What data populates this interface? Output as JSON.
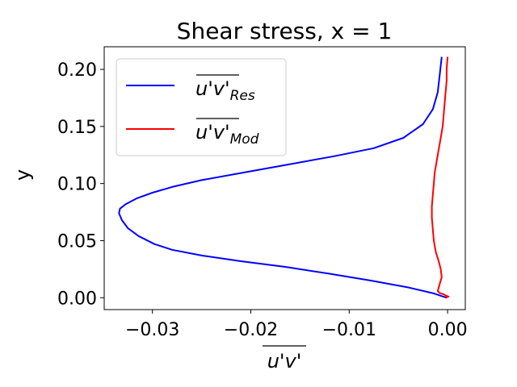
{
  "chart_data": {
    "type": "line",
    "title": "Shear stress, x = 1",
    "xlabel": "u'v'",
    "ylabel": "y",
    "xlim": [
      -0.0349,
      0.0018
    ],
    "ylim": [
      -0.0104,
      0.2198
    ],
    "xticks": [
      -0.03,
      -0.02,
      -0.01,
      0.0
    ],
    "xtick_labels": [
      "−0.03",
      "−0.02",
      "−0.01",
      "0.00"
    ],
    "yticks": [
      0.0,
      0.05,
      0.1,
      0.15,
      0.2
    ],
    "ytick_labels": [
      "0.00",
      "0.05",
      "0.10",
      "0.15",
      "0.20"
    ],
    "grid": false,
    "legend_position": "upper-left",
    "series": [
      {
        "name": "u'v'",
        "subscript": "Res",
        "color": "#0000ff",
        "points": [
          [
            -0.0006,
            0.211
          ],
          [
            -0.0008,
            0.195
          ],
          [
            -0.001,
            0.18
          ],
          [
            -0.0015,
            0.165
          ],
          [
            -0.0025,
            0.152
          ],
          [
            -0.0045,
            0.14
          ],
          [
            -0.0075,
            0.131
          ],
          [
            -0.0115,
            0.124
          ],
          [
            -0.016,
            0.117
          ],
          [
            -0.0205,
            0.11
          ],
          [
            -0.025,
            0.103
          ],
          [
            -0.028,
            0.097
          ],
          [
            -0.03,
            0.092
          ],
          [
            -0.0316,
            0.087
          ],
          [
            -0.0327,
            0.082
          ],
          [
            -0.0333,
            0.078
          ],
          [
            -0.0334,
            0.074
          ],
          [
            -0.0331,
            0.068
          ],
          [
            -0.0325,
            0.061
          ],
          [
            -0.0314,
            0.054
          ],
          [
            -0.0298,
            0.047
          ],
          [
            -0.028,
            0.042
          ],
          [
            -0.025,
            0.037
          ],
          [
            -0.021,
            0.032
          ],
          [
            -0.0165,
            0.027
          ],
          [
            -0.012,
            0.021
          ],
          [
            -0.0078,
            0.015
          ],
          [
            -0.004,
            0.009
          ],
          [
            -0.0015,
            0.004
          ],
          [
            -0.0001,
            0.0
          ]
        ]
      },
      {
        "name": "u'v'",
        "subscript": "Mod",
        "color": "#ff0000",
        "points": [
          [
            0.0,
            0.211
          ],
          [
            -0.0001,
            0.2
          ],
          [
            -0.0001,
            0.19
          ],
          [
            -0.0002,
            0.18
          ],
          [
            -0.0003,
            0.17
          ],
          [
            -0.0004,
            0.16
          ],
          [
            -0.0005,
            0.15
          ],
          [
            -0.0007,
            0.14
          ],
          [
            -0.0009,
            0.13
          ],
          [
            -0.0011,
            0.12
          ],
          [
            -0.0013,
            0.11
          ],
          [
            -0.0014,
            0.1
          ],
          [
            -0.0015,
            0.09
          ],
          [
            -0.0016,
            0.08
          ],
          [
            -0.0016,
            0.07
          ],
          [
            -0.0015,
            0.06
          ],
          [
            -0.0014,
            0.05
          ],
          [
            -0.0012,
            0.04
          ],
          [
            -0.0009,
            0.032
          ],
          [
            -0.0007,
            0.025
          ],
          [
            -0.0006,
            0.018
          ],
          [
            -0.0008,
            0.012
          ],
          [
            -0.001,
            0.006
          ],
          [
            -0.0008,
            0.004
          ],
          [
            -0.0004,
            0.003
          ],
          [
            -0.0002,
            0.002
          ],
          [
            0.0001,
            0.001
          ],
          [
            -0.0002,
            0.001
          ],
          [
            0.0,
            0.0
          ]
        ]
      }
    ]
  }
}
